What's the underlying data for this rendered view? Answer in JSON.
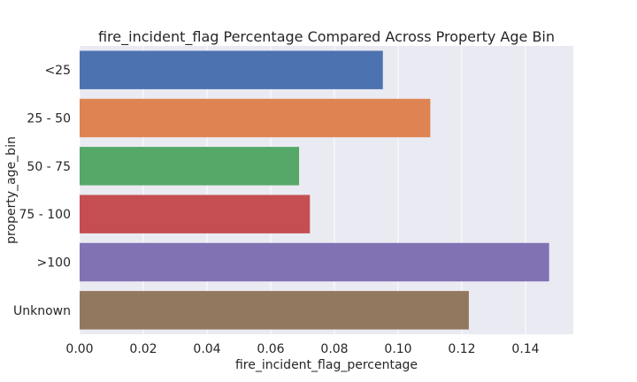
{
  "chart_data": {
    "type": "bar",
    "orientation": "horizontal",
    "title": "fire_incident_flag Percentage Compared Across Property Age Bin",
    "xlabel": "fire_incident_flag_percentage",
    "ylabel": "property_age_bin",
    "categories": [
      "<25",
      "25 - 50",
      "50 - 75",
      "75 - 100",
      ">100",
      "Unknown"
    ],
    "values": [
      0.0952,
      0.1101,
      0.0689,
      0.0723,
      0.1474,
      0.1222
    ],
    "colors": [
      "#4c72b0",
      "#dd8452",
      "#55a868",
      "#c44e52",
      "#8172b3",
      "#937860"
    ],
    "xlim": [
      0,
      0.155
    ],
    "xticks": [
      0.0,
      0.02,
      0.04,
      0.06,
      0.08,
      0.1,
      0.12,
      0.14
    ],
    "xtick_labels": [
      "0.00",
      "0.02",
      "0.04",
      "0.06",
      "0.08",
      "0.10",
      "0.12",
      "0.14"
    ],
    "grid": true,
    "background": "#eaeaf2",
    "grid_color": "#ffffff"
  }
}
